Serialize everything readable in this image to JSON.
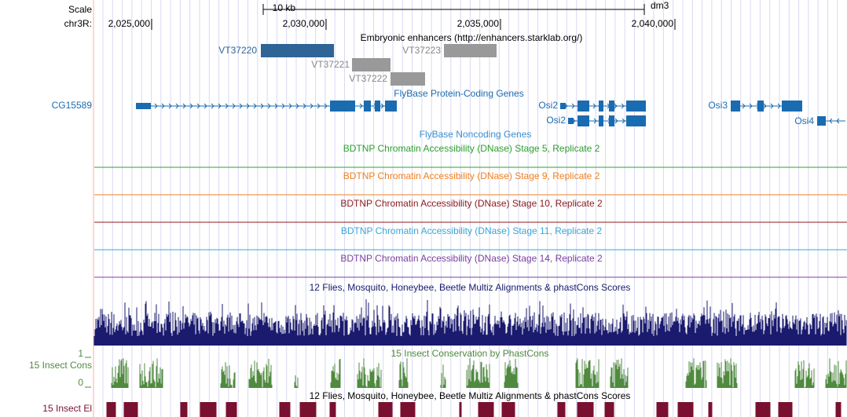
{
  "ruler": {
    "scale_label": "Scale",
    "chr_label": "chr3R:",
    "span_label": "10 kb",
    "assembly": "dm3",
    "positions": [
      "2,025,000",
      "2,030,000",
      "2,035,000",
      "2,040,000"
    ]
  },
  "enhancers": {
    "title": "Embryonic enhancers (http://enhancers.starklab.org/)",
    "items": [
      "VT37220",
      "VT37221",
      "VT37222",
      "VT37223"
    ]
  },
  "genes": {
    "title": "FlyBase Protein-Coding Genes",
    "labels": [
      "CG15589",
      "Osi2",
      "Osi2",
      "Osi3",
      "Osi4"
    ]
  },
  "noncoding_title": "FlyBase Noncoding Genes",
  "dnase": [
    "BDTNP Chromatin Accessibility (DNase) Stage 5, Replicate 2",
    "BDTNP Chromatin Accessibility (DNase) Stage 9, Replicate 2",
    "BDTNP Chromatin Accessibility (DNase) Stage 10, Replicate 2",
    "BDTNP Chromatin Accessibility (DNase) Stage 11, Replicate 2",
    "BDTNP Chromatin Accessibility (DNase) Stage 14, Replicate 2"
  ],
  "multiz_title": "12 Flies, Mosquito, Honeybee, Beetle Multiz Alignments & phastCons Scores",
  "phastcons": {
    "title": "15 Insect Conservation by PhastCons",
    "side_label": "15 Insect Cons",
    "axis_max": 1,
    "axis_min": 0
  },
  "elements": {
    "title": "12 Flies, Mosquito, Honeybee, Beetle Multiz Alignments & phastCons Scores",
    "side_label": "15 Insect El"
  }
}
